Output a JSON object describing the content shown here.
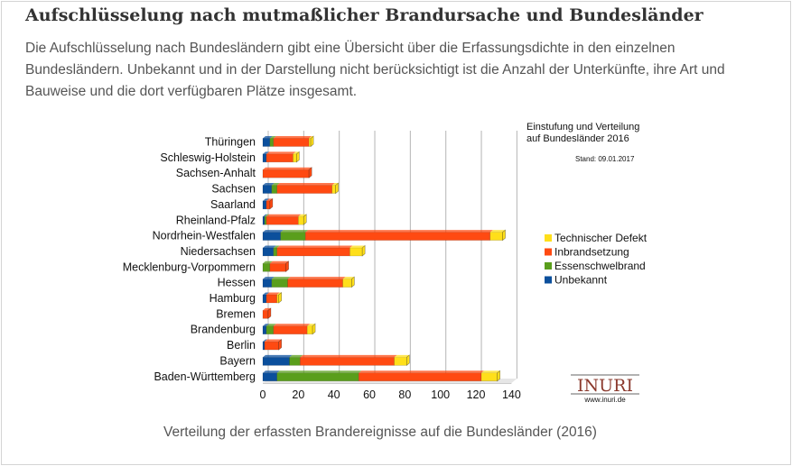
{
  "heading": "Aufschlüsselung nach mutmaßlicher Brandursache und Bundesländer",
  "intro": "Die Aufschlüsselung nach Bundesländern gibt eine Übersicht über die Erfassungsdichte in den einzelnen Bundesländern. Unbekannt und in der Darstellung nicht berücksichtigt ist die Anzahl der Unterkünfte, ihre Art und Bauweise und die dort verfügbaren Plätze insgesamt.",
  "caption": "Verteilung der erfassten Brandereignisse auf die Bundesländer (2016)",
  "logo": {
    "name": "INURI",
    "url": "www.inuri.de"
  },
  "chart_data": {
    "type": "bar",
    "orientation": "horizontal",
    "stacked": true,
    "title": "Einstufung und Verteilung auf Bundesländer 2016",
    "subtitle": "Stand: 09.01.2017",
    "xlim": [
      0,
      140
    ],
    "xticks": [
      "0",
      "20",
      "40",
      "60",
      "80",
      "100",
      "120",
      "140"
    ],
    "grid": true,
    "legend_position": "right",
    "categories": [
      "Thüringen",
      "Schleswig-Holstein",
      "Sachsen-Anhalt",
      "Sachsen",
      "Saarland",
      "Rheinland-Pfalz",
      "Nordrhein-Westfalen",
      "Niedersachsen",
      "Mecklenburg-Vorpommern",
      "Hessen",
      "Hamburg",
      "Bremen",
      "Brandenburg",
      "Berlin",
      "Bayern",
      "Baden-Württemberg"
    ],
    "series": [
      {
        "name": "Unbekannt",
        "color": "#0b4f9c",
        "values": [
          4,
          2,
          0,
          5,
          2,
          1,
          10,
          6,
          0,
          5,
          2,
          0,
          2,
          1,
          15,
          8
        ]
      },
      {
        "name": "Essenschwelbrand",
        "color": "#5a9e1c",
        "values": [
          2,
          0,
          0,
          3,
          0,
          1,
          14,
          2,
          4,
          9,
          0,
          0,
          4,
          0,
          6,
          46
        ]
      },
      {
        "name": "Inbrandsetzung",
        "color": "#ff4a12",
        "values": [
          20,
          15,
          26,
          31,
          2,
          18,
          104,
          41,
          9,
          31,
          6,
          3,
          19,
          8,
          53,
          69
        ]
      },
      {
        "name": "Technischer Defekt",
        "color": "#ffdf1a",
        "values": [
          1,
          2,
          0,
          2,
          0,
          3,
          7,
          7,
          0,
          5,
          1,
          0,
          3,
          0,
          7,
          9
        ]
      }
    ],
    "legend_order": [
      "Technischer Defekt",
      "Inbrandsetzung",
      "Essenschwelbrand",
      "Unbekannt"
    ]
  }
}
